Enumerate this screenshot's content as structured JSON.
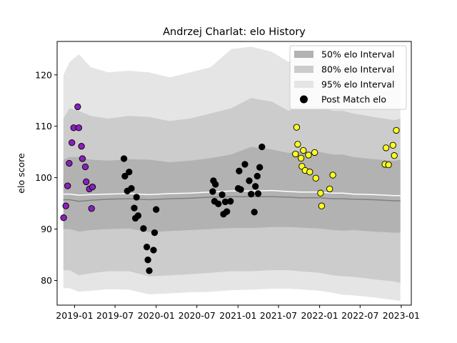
{
  "chart_data": {
    "type": "scatter",
    "title": "Andrzej Charlat: elo History",
    "ylabel": "elo score",
    "xlabel": "",
    "ylim": [
      75.2,
      126.5
    ],
    "xlim": [
      "2018-10-15",
      "2023-02-15"
    ],
    "yticks": [
      80,
      90,
      100,
      110,
      120
    ],
    "xticks": [
      "2019-01",
      "2019-07",
      "2020-01",
      "2020-07",
      "2021-01",
      "2021-07",
      "2022-01",
      "2022-07",
      "2023-01"
    ],
    "legend": {
      "placement": "top-right",
      "entries": [
        {
          "label": "50% elo Interval",
          "color": "#b2b2b2",
          "kind": "band"
        },
        {
          "label": "80% elo Interval",
          "color": "#cccccc",
          "kind": "band"
        },
        {
          "label": "95% elo Interval",
          "color": "#e5e5e5",
          "kind": "band"
        },
        {
          "label": "Post Match elo",
          "color": "#000000",
          "kind": "marker"
        }
      ]
    },
    "bands": {
      "x": [
        "2018-11-12",
        "2018-12-10",
        "2019-01-20",
        "2019-03-15",
        "2019-06-01",
        "2019-09-01",
        "2019-12-01",
        "2020-03-01",
        "2020-06-01",
        "2020-09-01",
        "2020-12-01",
        "2021-03-01",
        "2021-06-01",
        "2021-08-15",
        "2021-10-01",
        "2022-01-01",
        "2022-03-01",
        "2022-04-15",
        "2022-06-01",
        "2022-09-01",
        "2022-12-01",
        "2022-12-28"
      ],
      "p95_low": [
        78.5,
        78.5,
        77.8,
        78.0,
        78.3,
        78.2,
        77.3,
        77.5,
        77.7,
        77.8,
        78.1,
        78.2,
        78.4,
        78.4,
        78.3,
        78.0,
        77.6,
        77.2,
        77.1,
        76.7,
        76.2,
        76.0
      ],
      "p95_high": [
        120.0,
        122.5,
        124.0,
        121.5,
        120.5,
        120.8,
        120.5,
        119.5,
        120.5,
        121.5,
        125.0,
        125.5,
        124.5,
        122.5,
        124.0,
        123.0,
        122.0,
        122.0,
        121.5,
        120.5,
        120.0,
        120.5
      ],
      "p80_low": [
        82.0,
        82.0,
        81.0,
        81.4,
        81.8,
        81.8,
        80.8,
        81.0,
        81.2,
        81.5,
        81.8,
        81.8,
        82.0,
        82.0,
        81.8,
        81.5,
        81.0,
        80.8,
        80.7,
        80.2,
        79.8,
        79.5
      ],
      "p80_high": [
        111.5,
        113.5,
        113.0,
        112.0,
        111.5,
        112.0,
        111.8,
        111.0,
        111.5,
        112.5,
        113.5,
        115.5,
        114.8,
        113.0,
        114.0,
        113.8,
        113.0,
        113.0,
        112.5,
        111.8,
        111.2,
        111.5
      ],
      "p50_low": [
        90.0,
        90.0,
        89.5,
        89.8,
        90.0,
        90.1,
        89.4,
        89.6,
        89.8,
        90.0,
        90.2,
        90.2,
        90.4,
        90.4,
        90.3,
        90.1,
        89.8,
        89.7,
        89.8,
        89.5,
        89.3,
        89.3
      ],
      "p50_high": [
        103.5,
        104.0,
        104.0,
        103.5,
        103.3,
        103.6,
        103.5,
        103.0,
        103.3,
        103.8,
        104.5,
        106.0,
        105.5,
        104.8,
        105.2,
        105.0,
        104.5,
        104.5,
        104.0,
        103.6,
        103.3,
        103.5
      ],
      "mean": [
        96.8,
        96.8,
        96.6,
        96.7,
        96.8,
        96.9,
        96.7,
        96.9,
        97.0,
        97.2,
        97.4,
        97.4,
        97.5,
        97.3,
        97.2,
        97.2,
        97.0,
        97.0,
        96.8,
        96.7,
        96.5,
        96.5
      ],
      "median": [
        95.7,
        95.7,
        95.4,
        95.6,
        95.8,
        95.9,
        95.7,
        95.9,
        96.0,
        96.2,
        96.3,
        96.3,
        96.3,
        96.2,
        96.1,
        96.1,
        95.9,
        95.9,
        95.8,
        95.7,
        95.5,
        95.5
      ]
    },
    "series": [
      {
        "color": "#8a1fbd",
        "points": [
          [
            "2018-11-13",
            92.2
          ],
          [
            "2018-11-23",
            94.5
          ],
          [
            "2018-12-01",
            98.4
          ],
          [
            "2018-12-08",
            102.8
          ],
          [
            "2018-12-20",
            106.8
          ],
          [
            "2018-12-28",
            109.7
          ],
          [
            "2019-01-15",
            113.8
          ],
          [
            "2019-01-20",
            109.7
          ],
          [
            "2019-02-01",
            106.1
          ],
          [
            "2019-02-05",
            103.7
          ],
          [
            "2019-02-18",
            102.1
          ],
          [
            "2019-02-22",
            99.2
          ],
          [
            "2019-03-08",
            97.8
          ],
          [
            "2019-03-18",
            94.0
          ],
          [
            "2019-03-22",
            98.2
          ]
        ]
      },
      {
        "color": "#000000",
        "points": [
          [
            "2019-08-10",
            103.7
          ],
          [
            "2019-08-14",
            100.3
          ],
          [
            "2019-08-25",
            97.4
          ],
          [
            "2019-09-02",
            101.1
          ],
          [
            "2019-09-12",
            97.9
          ],
          [
            "2019-09-25",
            94.1
          ],
          [
            "2019-09-30",
            92.1
          ],
          [
            "2019-10-05",
            96.2
          ],
          [
            "2019-10-12",
            92.6
          ],
          [
            "2019-11-05",
            90.1
          ],
          [
            "2019-11-20",
            86.5
          ],
          [
            "2019-11-25",
            84.0
          ],
          [
            "2019-12-01",
            81.9
          ],
          [
            "2019-12-20",
            85.9
          ],
          [
            "2019-12-25",
            89.3
          ],
          [
            "2020-01-01",
            93.8
          ],
          [
            "2020-09-10",
            97.3
          ],
          [
            "2020-09-13",
            99.4
          ],
          [
            "2020-09-18",
            95.4
          ],
          [
            "2020-09-22",
            98.7
          ],
          [
            "2020-10-05",
            94.9
          ],
          [
            "2020-10-22",
            96.7
          ],
          [
            "2020-10-28",
            92.9
          ],
          [
            "2020-11-05",
            95.3
          ],
          [
            "2020-11-12",
            93.4
          ],
          [
            "2020-11-28",
            95.4
          ],
          [
            "2021-01-02",
            97.9
          ],
          [
            "2021-01-06",
            101.3
          ],
          [
            "2021-01-13",
            97.7
          ],
          [
            "2021-02-01",
            102.6
          ],
          [
            "2021-02-20",
            99.4
          ],
          [
            "2021-03-01",
            96.8
          ],
          [
            "2021-03-15",
            93.3
          ],
          [
            "2021-03-20",
            98.3
          ],
          [
            "2021-03-28",
            100.3
          ],
          [
            "2021-04-01",
            96.9
          ],
          [
            "2021-04-08",
            102.0
          ],
          [
            "2021-04-18",
            106.0
          ]
        ]
      },
      {
        "color": "#ffff22",
        "points": [
          [
            "2021-09-15",
            104.6
          ],
          [
            "2021-09-20",
            109.8
          ],
          [
            "2021-09-25",
            106.5
          ],
          [
            "2021-10-10",
            103.8
          ],
          [
            "2021-10-14",
            102.2
          ],
          [
            "2021-10-20",
            105.3
          ],
          [
            "2021-10-28",
            101.4
          ],
          [
            "2021-11-12",
            104.4
          ],
          [
            "2021-11-18",
            101.1
          ],
          [
            "2021-12-10",
            104.9
          ],
          [
            "2021-12-15",
            99.9
          ],
          [
            "2022-01-05",
            97.0
          ],
          [
            "2022-01-10",
            94.5
          ],
          [
            "2022-02-15",
            97.8
          ],
          [
            "2022-03-01",
            100.5
          ],
          [
            "2022-10-20",
            102.6
          ],
          [
            "2022-10-25",
            105.8
          ],
          [
            "2022-11-05",
            102.5
          ],
          [
            "2022-11-25",
            106.3
          ],
          [
            "2022-12-01",
            104.3
          ],
          [
            "2022-12-10",
            109.2
          ]
        ]
      }
    ]
  }
}
